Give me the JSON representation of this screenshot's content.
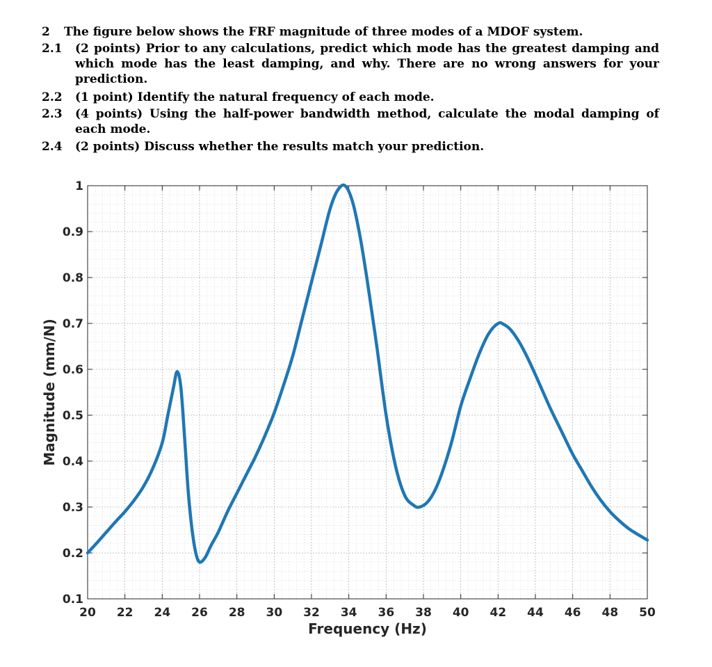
{
  "problem": {
    "number": "2",
    "intro": "The figure below shows the FRF magnitude of three modes of a MDOF system.",
    "parts": [
      {
        "num": "2.1",
        "text": "(2 points) Prior to any calculations, predict which mode has the greatest damping and which mode has the least damping, and why. There are no wrong answers for your prediction."
      },
      {
        "num": "2.2",
        "text": "(1 point) Identify the natural frequency of each mode."
      },
      {
        "num": "2.3",
        "text": "(4 points) Using the half-power bandwidth method, calculate the modal damping of each mode."
      },
      {
        "num": "2.4",
        "text": "(2 points) Discuss whether the results match your prediction."
      }
    ]
  },
  "chart_data": {
    "type": "line",
    "xlabel": "Frequency (Hz)",
    "ylabel": "Magnitude (mm/N)",
    "xlim": [
      20,
      50
    ],
    "ylim": [
      0.1,
      1
    ],
    "xticks": [
      20,
      22,
      24,
      26,
      28,
      30,
      32,
      34,
      36,
      38,
      40,
      42,
      44,
      46,
      48,
      50
    ],
    "yticks": [
      0.1,
      0.2,
      0.3,
      0.4,
      0.5,
      0.6,
      0.7,
      0.8,
      0.9,
      1
    ],
    "ytick_labels": [
      "0.1",
      "0.2",
      "0.3",
      "0.4",
      "0.5",
      "0.6",
      "0.7",
      "0.8",
      "0.9",
      "1"
    ],
    "grid": true,
    "minor_grid": true,
    "line_color": "#1f77b4",
    "series": [
      {
        "x": [
          20,
          20.5,
          21,
          21.5,
          22,
          22.5,
          23,
          23.5,
          24,
          24.3,
          24.6,
          24.8,
          25.0,
          25.2,
          25.4,
          25.6,
          25.8,
          26.0,
          26.3,
          26.6,
          27,
          27.5,
          28,
          28.5,
          29,
          29.5,
          30,
          30.5,
          31,
          31.5,
          32,
          32.5,
          33,
          33.4,
          33.8,
          34.2,
          34.6,
          35,
          35.5,
          36,
          36.5,
          37,
          37.5,
          37.8,
          38.2,
          38.6,
          39,
          39.5,
          40,
          40.5,
          41,
          41.5,
          42,
          42.3,
          42.7,
          43.2,
          43.7,
          44.2,
          44.8,
          45.4,
          46,
          46.5,
          47,
          47.5,
          48,
          48.5,
          49,
          49.5,
          50
        ],
        "y": [
          0.2,
          0.222,
          0.245,
          0.268,
          0.29,
          0.315,
          0.345,
          0.385,
          0.44,
          0.5,
          0.56,
          0.595,
          0.56,
          0.45,
          0.33,
          0.25,
          0.2,
          0.18,
          0.19,
          0.215,
          0.245,
          0.29,
          0.33,
          0.37,
          0.41,
          0.455,
          0.505,
          0.565,
          0.63,
          0.71,
          0.79,
          0.87,
          0.95,
          0.99,
          1.0,
          0.965,
          0.89,
          0.79,
          0.65,
          0.5,
          0.39,
          0.325,
          0.303,
          0.3,
          0.31,
          0.335,
          0.375,
          0.44,
          0.52,
          0.58,
          0.635,
          0.678,
          0.7,
          0.698,
          0.685,
          0.655,
          0.615,
          0.57,
          0.515,
          0.465,
          0.415,
          0.38,
          0.345,
          0.315,
          0.29,
          0.27,
          0.253,
          0.24,
          0.228
        ]
      }
    ]
  }
}
